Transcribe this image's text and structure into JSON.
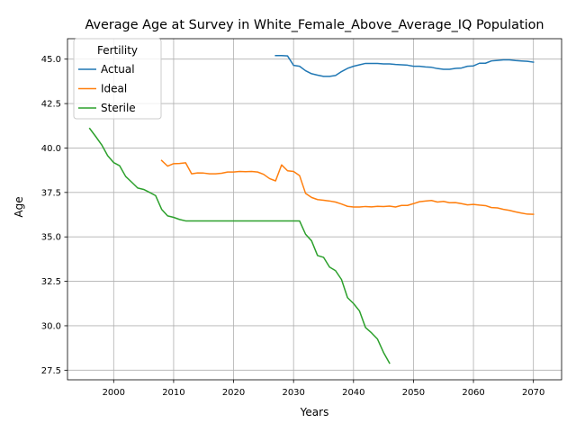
{
  "chart_data": {
    "type": "line",
    "title": "Average Age at Survey in White_Female_Above_Average_IQ Population",
    "xlabel": "Years",
    "ylabel": "Age",
    "xlim": [
      1992.3,
      2074.7
    ],
    "ylim": [
      26.96,
      46.15
    ],
    "xticks": [
      2000,
      2010,
      2020,
      2030,
      2040,
      2050,
      2060,
      2070
    ],
    "xtick_labels": [
      "2000",
      "2010",
      "2020",
      "2030",
      "2040",
      "2050",
      "2060",
      "2070"
    ],
    "yticks": [
      27.5,
      30.0,
      32.5,
      35.0,
      37.5,
      40.0,
      42.5,
      45.0
    ],
    "ytick_labels": [
      "27.5",
      "30.0",
      "32.5",
      "35.0",
      "37.5",
      "40.0",
      "42.5",
      "45.0"
    ],
    "grid": true,
    "legend": {
      "title": "Fertility",
      "position": "top-left"
    },
    "series": [
      {
        "name": "Actual",
        "color": "#1f77b4",
        "x": [
          2027,
          2028,
          2029,
          2030,
          2031,
          2032,
          2033,
          2034,
          2035,
          2036,
          2037,
          2038,
          2039,
          2040,
          2041,
          2042,
          2043,
          2044,
          2045,
          2046,
          2047,
          2048,
          2049,
          2050,
          2051,
          2052,
          2053,
          2054,
          2055,
          2056,
          2057,
          2058,
          2059,
          2060,
          2061,
          2062,
          2063,
          2064,
          2065,
          2066,
          2067,
          2068,
          2069,
          2070
        ],
        "values": [
          45.2,
          45.2,
          45.18,
          44.65,
          44.6,
          44.35,
          44.18,
          44.1,
          44.03,
          44.03,
          44.08,
          44.3,
          44.48,
          44.6,
          44.68,
          44.76,
          44.76,
          44.76,
          44.73,
          44.73,
          44.7,
          44.68,
          44.66,
          44.6,
          44.6,
          44.56,
          44.54,
          44.47,
          44.43,
          44.43,
          44.48,
          44.5,
          44.6,
          44.62,
          44.77,
          44.77,
          44.9,
          44.93,
          44.96,
          44.96,
          44.92,
          44.9,
          44.88,
          44.83
        ]
      },
      {
        "name": "Ideal",
        "color": "#ff7f0e",
        "x": [
          2008,
          2009,
          2010,
          2011,
          2012,
          2013,
          2014,
          2015,
          2016,
          2017,
          2018,
          2019,
          2020,
          2021,
          2022,
          2023,
          2024,
          2025,
          2026,
          2027,
          2028,
          2029,
          2030,
          2031,
          2032,
          2033,
          2034,
          2035,
          2036,
          2037,
          2038,
          2039,
          2040,
          2041,
          2042,
          2043,
          2044,
          2045,
          2046,
          2047,
          2048,
          2049,
          2050,
          2051,
          2052,
          2053,
          2054,
          2055,
          2056,
          2057,
          2058,
          2059,
          2060,
          2061,
          2062,
          2063,
          2064,
          2065,
          2066,
          2067,
          2068,
          2069,
          2070
        ],
        "values": [
          39.3,
          38.98,
          39.12,
          39.13,
          39.17,
          38.55,
          38.6,
          38.59,
          38.55,
          38.55,
          38.58,
          38.65,
          38.65,
          38.68,
          38.67,
          38.68,
          38.65,
          38.52,
          38.28,
          38.15,
          39.05,
          38.72,
          38.68,
          38.45,
          37.45,
          37.22,
          37.1,
          37.06,
          37.02,
          36.96,
          36.85,
          36.72,
          36.68,
          36.68,
          36.71,
          36.69,
          36.72,
          36.71,
          36.73,
          36.68,
          36.77,
          36.77,
          36.87,
          36.98,
          37.02,
          37.05,
          36.96,
          37.0,
          36.92,
          36.93,
          36.87,
          36.8,
          36.83,
          36.79,
          36.76,
          36.65,
          36.63,
          36.55,
          36.49,
          36.41,
          36.34,
          36.28,
          36.27
        ]
      },
      {
        "name": "Sterile",
        "color": "#2ca02c",
        "x": [
          1996,
          1997,
          1998,
          1999,
          2000,
          2001,
          2002,
          2003,
          2004,
          2005,
          2006,
          2007,
          2008,
          2009,
          2010,
          2011,
          2012,
          2013,
          2014,
          2015,
          2016,
          2017,
          2018,
          2019,
          2020,
          2021,
          2022,
          2023,
          2024,
          2025,
          2026,
          2027,
          2028,
          2029,
          2030,
          2031,
          2032,
          2033,
          2034,
          2035,
          2036,
          2037,
          2038,
          2039,
          2040,
          2041,
          2042,
          2043,
          2044,
          2045,
          2046
        ],
        "values": [
          41.1,
          40.65,
          40.18,
          39.57,
          39.18,
          39.0,
          38.4,
          38.08,
          37.75,
          37.67,
          37.5,
          37.32,
          36.55,
          36.18,
          36.1,
          35.98,
          35.9,
          35.9,
          35.9,
          35.9,
          35.9,
          35.9,
          35.9,
          35.9,
          35.9,
          35.9,
          35.9,
          35.9,
          35.9,
          35.9,
          35.9,
          35.9,
          35.9,
          35.9,
          35.9,
          35.9,
          35.15,
          34.78,
          33.95,
          33.85,
          33.3,
          33.1,
          32.6,
          31.58,
          31.25,
          30.83,
          29.9,
          29.6,
          29.25,
          28.5,
          27.9
        ]
      }
    ]
  }
}
